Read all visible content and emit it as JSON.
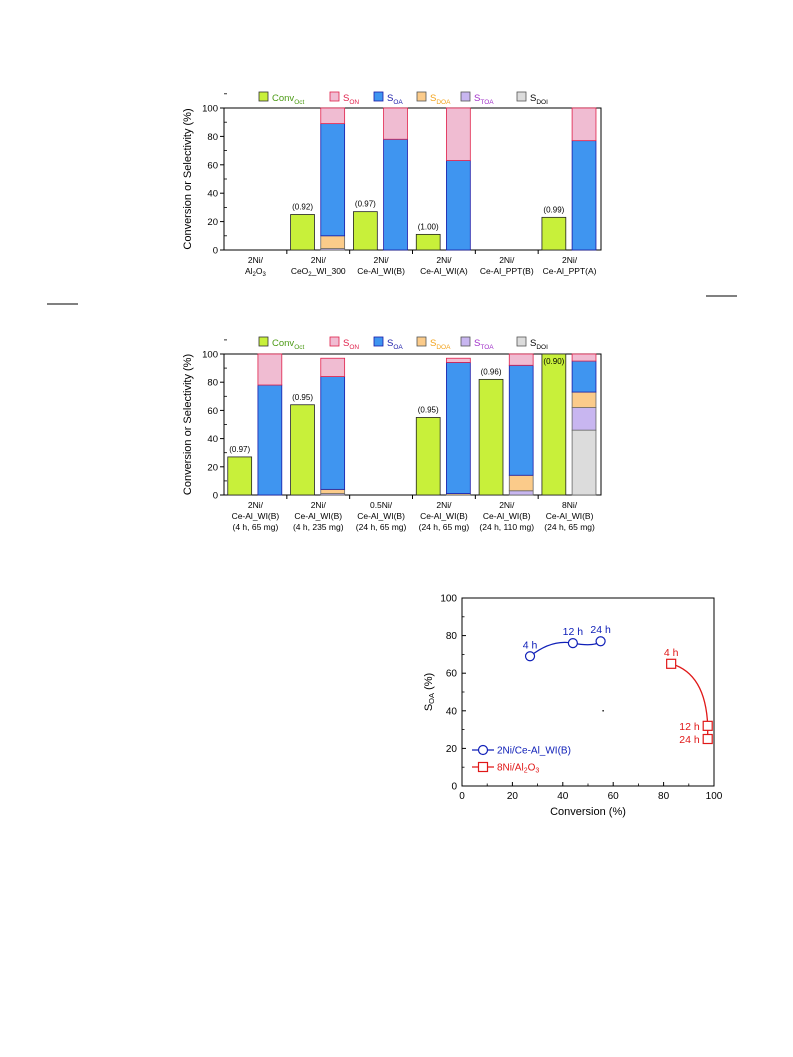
{
  "colors": {
    "conv": "#c8f03a",
    "son": "#f0bcd2",
    "son_edge": "#e0204a",
    "soa": "#3f95f0",
    "soa_edge": "#1a1aa8",
    "sdoa": "#fbcb8a",
    "stoa": "#c8b6f0",
    "sdoi": "#dcdcdc",
    "legend_conv": "#4b9a14",
    "legend_son": "#e0204a",
    "legend_soa": "#1a1aa8",
    "legend_sdoa": "#f2a21a",
    "legend_stoa": "#a030c8",
    "legend_sdoi": "#000000",
    "series_ni_ce": "#1020b8",
    "series_ni_al": "#e01818"
  },
  "legend": [
    {
      "key": "conv",
      "base": "Conv",
      "sub": "Oct"
    },
    {
      "key": "son",
      "base": "S",
      "sub": "ON"
    },
    {
      "key": "soa",
      "base": "S",
      "sub": "OA"
    },
    {
      "key": "sdoa",
      "base": "S",
      "sub": "DOA"
    },
    {
      "key": "stoa",
      "base": "S",
      "sub": "TOA"
    },
    {
      "key": "sdoi",
      "base": "S",
      "sub": "DOI"
    }
  ],
  "chart_data": [
    {
      "type": "bar",
      "stacked_selectivity": true,
      "ylabel": "Conversion or Selectivity (%)",
      "ylim": [
        0,
        100
      ],
      "yticks": [
        0,
        20,
        40,
        60,
        80,
        100
      ],
      "categories": [
        {
          "lines": [
            "2Ni/",
            "Al2O3"
          ],
          "conv": 0,
          "ratio": "",
          "sel": {}
        },
        {
          "lines": [
            "2Ni/",
            "CeO2_WI_300"
          ],
          "conv": 25,
          "ratio": "(0.92)",
          "sel": {
            "stoa": 1,
            "sdoa": 9,
            "soa": 79,
            "son": 11
          }
        },
        {
          "lines": [
            "2Ni/",
            "Ce-Al_WI(B)"
          ],
          "conv": 27,
          "ratio": "(0.97)",
          "sel": {
            "soa": 78,
            "son": 22
          }
        },
        {
          "lines": [
            "2Ni/",
            "Ce-Al_WI(A)"
          ],
          "conv": 11,
          "ratio": "(1.00)",
          "sel": {
            "soa": 63,
            "son": 37
          }
        },
        {
          "lines": [
            "2Ni/",
            "Ce-Al_PPT(B)"
          ],
          "conv": 0,
          "ratio": "",
          "sel": {}
        },
        {
          "lines": [
            "2Ni/",
            "Ce-Al_PPT(A)"
          ],
          "conv": 23,
          "ratio": "(0.99)",
          "sel": {
            "soa": 77,
            "son": 23
          }
        }
      ]
    },
    {
      "type": "bar",
      "stacked_selectivity": true,
      "ylabel": "Conversion or Selectivity (%)",
      "ylim": [
        0,
        100
      ],
      "yticks": [
        0,
        20,
        40,
        60,
        80,
        100
      ],
      "categories": [
        {
          "lines": [
            "2Ni/",
            "Ce-Al_WI(B)",
            "(4 h, 65 mg)"
          ],
          "conv": 27,
          "ratio": "(0.97)",
          "sel": {
            "soa": 78,
            "son": 22
          }
        },
        {
          "lines": [
            "2Ni/",
            "Ce-Al_WI(B)",
            "(4 h, 235 mg)"
          ],
          "conv": 64,
          "ratio": "(0.95)",
          "sel": {
            "stoa": 1,
            "sdoa": 3,
            "soa": 80,
            "son": 13
          }
        },
        {
          "lines": [
            "0.5Ni/",
            "Ce-Al_WI(B)",
            "(24 h, 65 mg)"
          ],
          "conv": 0,
          "ratio": "",
          "sel": {}
        },
        {
          "lines": [
            "2Ni/",
            "Ce-Al_WI(B)",
            "(24 h, 65 mg)"
          ],
          "conv": 55,
          "ratio": "(0.95)",
          "sel": {
            "sdoa": 1,
            "soa": 93,
            "son": 3
          }
        },
        {
          "lines": [
            "2Ni/",
            "Ce-Al_WI(B)",
            "(24 h, 110 mg)"
          ],
          "conv": 82,
          "ratio": "(0.96)",
          "sel": {
            "stoa": 3,
            "sdoa": 11,
            "soa": 78,
            "son": 8
          }
        },
        {
          "lines": [
            "8Ni/",
            "Ce-Al_WI(B)",
            "(24 h, 65 mg)"
          ],
          "conv": 100,
          "ratio": "(0.90)",
          "sel": {
            "sdoi": 46,
            "stoa": 16,
            "sdoa": 11,
            "soa": 22,
            "son": 5
          }
        }
      ]
    },
    {
      "type": "scatter",
      "xlabel": "Conversion (%)",
      "ylabel": "S_OA (%)",
      "xlim": [
        0,
        100
      ],
      "ylim": [
        0,
        100
      ],
      "xticks": [
        0,
        20,
        40,
        60,
        80,
        100
      ],
      "yticks": [
        0,
        20,
        40,
        60,
        80,
        100
      ],
      "series": [
        {
          "name": "2Ni/Ce-Al_WI(B)",
          "marker": "circle",
          "color_key": "series_ni_ce",
          "points": [
            {
              "x": 27,
              "y": 69,
              "label": "4 h"
            },
            {
              "x": 44,
              "y": 76,
              "label": "12 h"
            },
            {
              "x": 55,
              "y": 77,
              "label": "24 h"
            }
          ]
        },
        {
          "name": "8Ni/Al2O3",
          "marker": "square",
          "color_key": "series_ni_al",
          "points": [
            {
              "x": 83,
              "y": 65,
              "label": "4 h"
            },
            {
              "x": 97.5,
              "y": 32,
              "label": "12 h"
            },
            {
              "x": 97.5,
              "y": 25,
              "label": "24 h"
            }
          ]
        }
      ]
    }
  ]
}
